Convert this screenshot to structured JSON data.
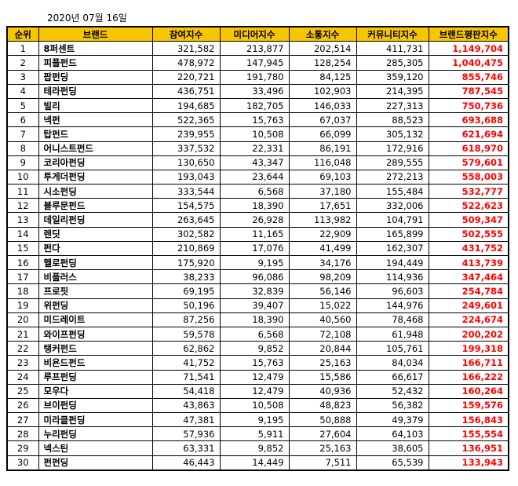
{
  "date": "2020년 07월 16일",
  "columns": [
    "순위",
    "브랜드",
    "참여지수",
    "미디어지수",
    "소통지수",
    "커뮤니티지수",
    "브랜드평판지수"
  ],
  "rows": [
    [
      "1",
      "8퍼센트",
      "321,582",
      "213,877",
      "202,514",
      "411,731",
      "1,149,704"
    ],
    [
      "2",
      "피플펀드",
      "478,972",
      "147,945",
      "128,254",
      "285,305",
      "1,040,475"
    ],
    [
      "3",
      "팝펀딩",
      "220,721",
      "191,780",
      "84,125",
      "359,120",
      "855,746"
    ],
    [
      "4",
      "테라펀딩",
      "436,751",
      "33,496",
      "102,903",
      "214,395",
      "787,545"
    ],
    [
      "5",
      "빌리",
      "194,685",
      "182,705",
      "146,033",
      "227,313",
      "750,736"
    ],
    [
      "6",
      "넥펀",
      "522,365",
      "15,763",
      "67,037",
      "88,523",
      "693,688"
    ],
    [
      "7",
      "탑펀드",
      "239,955",
      "10,508",
      "66,099",
      "305,132",
      "621,694"
    ],
    [
      "8",
      "어니스트펀드",
      "337,532",
      "22,331",
      "86,191",
      "172,916",
      "618,970"
    ],
    [
      "9",
      "코리아펀딩",
      "130,650",
      "43,347",
      "116,048",
      "289,555",
      "579,601"
    ],
    [
      "10",
      "투게더펀딩",
      "193,043",
      "23,644",
      "69,103",
      "272,213",
      "558,003"
    ],
    [
      "11",
      "시소펀딩",
      "333,544",
      "6,568",
      "37,180",
      "155,484",
      "532,777"
    ],
    [
      "12",
      "블루문펀드",
      "154,575",
      "18,390",
      "17,651",
      "332,006",
      "522,623"
    ],
    [
      "13",
      "데일리펀딩",
      "263,645",
      "26,928",
      "113,982",
      "104,791",
      "509,347"
    ],
    [
      "14",
      "렌딧",
      "302,582",
      "11,165",
      "22,909",
      "165,899",
      "502,555"
    ],
    [
      "15",
      "펀다",
      "210,869",
      "17,076",
      "41,499",
      "162,307",
      "431,752"
    ],
    [
      "16",
      "헬로펀딩",
      "175,920",
      "9,195",
      "34,176",
      "194,449",
      "413,739"
    ],
    [
      "17",
      "비플러스",
      "38,233",
      "96,086",
      "98,209",
      "114,936",
      "347,464"
    ],
    [
      "18",
      "프로핏",
      "69,195",
      "32,839",
      "56,146",
      "96,603",
      "254,784"
    ],
    [
      "19",
      "위펀딩",
      "50,196",
      "39,407",
      "15,022",
      "144,976",
      "249,601"
    ],
    [
      "20",
      "미드레이트",
      "87,256",
      "18,390",
      "40,560",
      "78,468",
      "224,674"
    ],
    [
      "21",
      "와이프펀딩",
      "59,578",
      "6,568",
      "72,108",
      "61,948",
      "200,202"
    ],
    [
      "22",
      "탱커펀드",
      "62,862",
      "9,852",
      "20,844",
      "105,761",
      "199,318"
    ],
    [
      "23",
      "비욘드펀드",
      "41,752",
      "15,763",
      "25,163",
      "84,034",
      "166,711"
    ],
    [
      "24",
      "루프펀딩",
      "71,541",
      "12,479",
      "15,586",
      "66,617",
      "166,222"
    ],
    [
      "25",
      "모우다",
      "54,418",
      "12,479",
      "40,936",
      "52,432",
      "160,264"
    ],
    [
      "26",
      "브이펀딩",
      "43,863",
      "10,508",
      "48,823",
      "56,382",
      "159,576"
    ],
    [
      "27",
      "미라클펀딩",
      "47,381",
      "9,195",
      "50,888",
      "49,379",
      "156,843"
    ],
    [
      "28",
      "누리펀딩",
      "57,936",
      "5,911",
      "27,604",
      "64,103",
      "155,554"
    ],
    [
      "29",
      "넥스틴",
      "63,331",
      "9,852",
      "25,163",
      "38,605",
      "136,951"
    ],
    [
      "30",
      "펀펀딩",
      "46,443",
      "14,449",
      "7,511",
      "65,539",
      "133,943"
    ]
  ],
  "colors": {
    "header_bg": "#f7c600",
    "reputation_text": "#ff0000"
  }
}
